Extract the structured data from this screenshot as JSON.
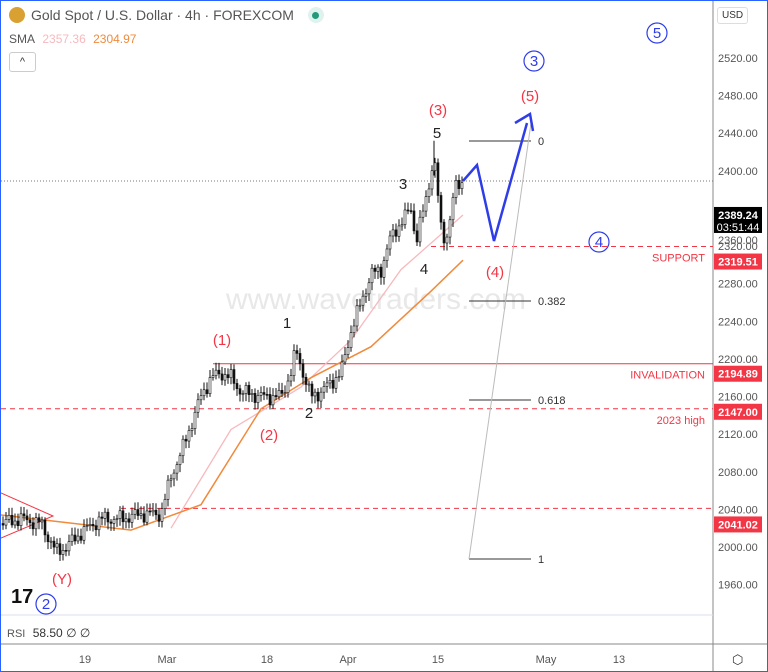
{
  "header": {
    "title": "Gold Spot / U.S. Dollar · 4h · FOREXCOM",
    "sma_label": "SMA",
    "sma_fast": "2357.36",
    "sma_slow": "2304.97",
    "currency": "USD",
    "collapse": "^"
  },
  "rsi": {
    "label": "RSI",
    "value": "58.50",
    "extra1": "∅",
    "extra2": "∅"
  },
  "colors": {
    "up": "#222",
    "red": "#f23645",
    "blue": "#2f3de8",
    "orange": "#f08a3c",
    "pink": "#f7b9bd"
  },
  "chart_data": {
    "type": "candlestick",
    "title": "Gold Spot / U.S. Dollar · 4h · FOREXCOM",
    "ylim": [
      1940,
      2560
    ],
    "yticks": [
      2520,
      2480,
      2440,
      2400,
      2360,
      2320,
      2280,
      2240,
      2200,
      2160,
      2120,
      2080,
      2040,
      2000,
      1960
    ],
    "xticks": [
      {
        "label": "19",
        "t": 84
      },
      {
        "label": "Mar",
        "t": 166
      },
      {
        "label": "18",
        "t": 266
      },
      {
        "label": "Apr",
        "t": 347
      },
      {
        "label": "15",
        "t": 437
      },
      {
        "label": "May",
        "t": 545
      },
      {
        "label": "13",
        "t": 618
      }
    ],
    "price": {
      "t": [
        0,
        20,
        40,
        55,
        65,
        80,
        100,
        120,
        140,
        160,
        170,
        180,
        190,
        200,
        210,
        220,
        230,
        240,
        260,
        280,
        290,
        295,
        305,
        310,
        320,
        330,
        340,
        350,
        360,
        370,
        380,
        390,
        400,
        410,
        415,
        425,
        433,
        440,
        445,
        455,
        462
      ],
      "close": [
        2025,
        2030,
        2025,
        1995,
        2000,
        2015,
        2030,
        2030,
        2035,
        2035,
        2075,
        2100,
        2130,
        2160,
        2180,
        2185,
        2180,
        2165,
        2160,
        2160,
        2185,
        2210,
        2175,
        2160,
        2165,
        2175,
        2185,
        2230,
        2260,
        2290,
        2295,
        2330,
        2345,
        2360,
        2325,
        2370,
        2415,
        2340,
        2325,
        2385,
        2389
      ]
    },
    "sma_fast_line": {
      "t": [
        170,
        230,
        300,
        350,
        400,
        462
      ],
      "v": [
        2020,
        2125,
        2170,
        2220,
        2295,
        2353
      ]
    },
    "sma_slow_line": {
      "t": [
        0,
        130,
        200,
        260,
        310,
        370,
        430,
        462
      ],
      "v": [
        2034,
        2018,
        2045,
        2147,
        2180,
        2213,
        2272,
        2305
      ]
    },
    "price_tags": [
      {
        "value": "2389.24",
        "sub": "03:51:44",
        "kind": "current"
      },
      {
        "value": "2319.51",
        "kind": "level"
      },
      {
        "value": "2194.89",
        "kind": "level"
      },
      {
        "value": "2147.00",
        "kind": "level"
      },
      {
        "value": "2041.02",
        "kind": "level"
      }
    ],
    "level_labels": [
      "SUPPORT",
      "INVALIDATION",
      "2023 high"
    ],
    "fib_labels": [
      "0",
      "0.382",
      "0.618",
      "1"
    ],
    "wave_labels": {
      "red": [
        "(1)",
        "(2)",
        "(3)",
        "(4)",
        "(5)",
        "(Y)"
      ],
      "black": [
        "1",
        "2",
        "3",
        "4",
        "5"
      ],
      "circled": [
        "2",
        "3",
        "4",
        "5"
      ]
    },
    "watermark": "www.wavetraders.com"
  }
}
